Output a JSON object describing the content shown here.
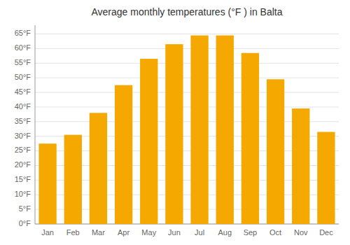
{
  "chart_data": {
    "type": "bar",
    "title": "Average monthly temperatures (°F ) in Balta",
    "categories": [
      "Jan",
      "Feb",
      "Mar",
      "Apr",
      "May",
      "Jun",
      "Jul",
      "Aug",
      "Sep",
      "Oct",
      "Nov",
      "Dec"
    ],
    "values": [
      27.5,
      30.5,
      38.0,
      47.5,
      56.5,
      61.5,
      64.5,
      64.5,
      58.5,
      49.5,
      39.5,
      31.5
    ],
    "color": "#F5A800",
    "ylim": [
      0,
      68
    ],
    "yticks": [
      {
        "value": 0,
        "label": "0°F"
      },
      {
        "value": 5,
        "label": "5°F"
      },
      {
        "value": 10,
        "label": "10°F"
      },
      {
        "value": 15,
        "label": "15°F"
      },
      {
        "value": 20,
        "label": "20°F"
      },
      {
        "value": 25,
        "label": "25°F"
      },
      {
        "value": 30,
        "label": "30°F"
      },
      {
        "value": 35,
        "label": "35°F"
      },
      {
        "value": 40,
        "label": "40°F"
      },
      {
        "value": 45,
        "label": "45°F"
      },
      {
        "value": 50,
        "label": "50°F"
      },
      {
        "value": 55,
        "label": "55°F"
      },
      {
        "value": 60,
        "label": "60°F"
      },
      {
        "value": 65,
        "label": "65°F"
      }
    ],
    "grid": true
  }
}
